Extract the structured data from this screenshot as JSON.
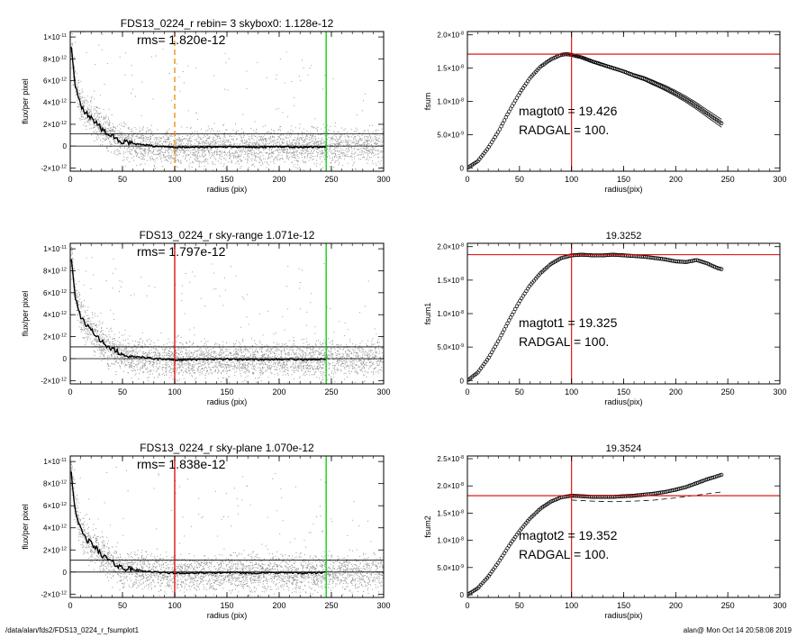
{
  "footer": {
    "path": "/data/alan/fds2/FDS13_0224_r_fsumplot1",
    "stamp": "alan@  Mon Oct 14 20:58:08 2019"
  },
  "colors": {
    "scatter_points": "#999999",
    "profile_line": "#000000",
    "magnitude_aperture": "#dd0000",
    "outer_radius": "#00cc00",
    "dashed_aperture": "#ee8800",
    "plateau_line": "#dd0000"
  },
  "chart_data": [
    {
      "type": "scatter",
      "panel": "left-1",
      "title": "FDS13_0224_r rebin= 3    skybox0:  1.128e-12",
      "annotation": "rms= 1.820e-12",
      "xlabel": "radius (pix)",
      "ylabel": "flux/per pixel",
      "xlim": [
        0,
        300
      ],
      "ylim": [
        -2.3e-12,
        1.05e-11
      ],
      "xticks": [
        0,
        50,
        100,
        150,
        200,
        250,
        300
      ],
      "xtick_labels": [
        "0",
        "50",
        "100",
        "150",
        "200",
        "250",
        "300"
      ],
      "yticks": [
        -2e-12,
        0,
        2e-12,
        4e-12,
        6e-12,
        8e-12,
        1e-11
      ],
      "ytick_labels": [
        [
          "-2×10",
          "-12"
        ],
        [
          "0",
          ""
        ],
        [
          "2×10",
          "-12"
        ],
        [
          "4×10",
          "-12"
        ],
        [
          "6×10",
          "-12"
        ],
        [
          "8×10",
          "-12"
        ],
        [
          "1×10",
          "-11"
        ]
      ],
      "hlines": [
        0,
        1.128e-12
      ],
      "vlines": [
        {
          "x": 100,
          "color": "#ee8800",
          "dashed": true
        },
        {
          "x": 245,
          "color": "#00cc00",
          "dashed": false
        }
      ],
      "profile": {
        "x": [
          1,
          3,
          5,
          8,
          10,
          15,
          20,
          25,
          30,
          35,
          40,
          45,
          50,
          60,
          70,
          80,
          90,
          100,
          120,
          150,
          180,
          200,
          220,
          245
        ],
        "y": [
          9.2e-12,
          7e-12,
          5.6e-12,
          4.5e-12,
          3.8e-12,
          3e-12,
          2.6e-12,
          2.1e-12,
          1.6e-12,
          1.2e-12,
          9e-13,
          6e-13,
          4e-13,
          2e-13,
          1e-13,
          0.0,
          -5e-14,
          -1e-13,
          -1e-13,
          -5e-14,
          -1e-13,
          -5e-14,
          -1e-13,
          -5e-14
        ]
      },
      "scatter_seed": 11
    },
    {
      "type": "scatter",
      "panel": "left-2",
      "title": "FDS13_0224_r sky-range  1.071e-12",
      "annotation": "rms= 1.797e-12",
      "xlabel": "radius (pix)",
      "ylabel": "flux/per pixel",
      "xlim": [
        0,
        300
      ],
      "ylim": [
        -2.3e-12,
        1.05e-11
      ],
      "xticks": [
        0,
        50,
        100,
        150,
        200,
        250,
        300
      ],
      "xtick_labels": [
        "0",
        "50",
        "100",
        "150",
        "200",
        "250",
        "300"
      ],
      "yticks": [
        -2e-12,
        0,
        2e-12,
        4e-12,
        6e-12,
        8e-12,
        1e-11
      ],
      "ytick_labels": [
        [
          "-2×10",
          "-12"
        ],
        [
          "0",
          ""
        ],
        [
          "2×10",
          "-12"
        ],
        [
          "4×10",
          "-12"
        ],
        [
          "6×10",
          "-12"
        ],
        [
          "8×10",
          "-12"
        ],
        [
          "1×10",
          "-11"
        ]
      ],
      "hlines": [
        0,
        1.071e-12
      ],
      "vlines": [
        {
          "x": 100,
          "color": "#dd0000",
          "dashed": false
        },
        {
          "x": 245,
          "color": "#00cc00",
          "dashed": false
        }
      ],
      "profile": {
        "x": [
          1,
          3,
          5,
          8,
          10,
          15,
          20,
          25,
          30,
          35,
          40,
          45,
          50,
          60,
          70,
          80,
          90,
          100,
          120,
          150,
          180,
          200,
          220,
          245
        ],
        "y": [
          9.2e-12,
          7e-12,
          5.6e-12,
          4.5e-12,
          3.8e-12,
          3e-12,
          2.6e-12,
          2.1e-12,
          1.6e-12,
          1.2e-12,
          9e-13,
          6e-13,
          4e-13,
          2e-13,
          1e-13,
          0.0,
          -5e-14,
          -1e-13,
          -1e-13,
          -5e-14,
          -1e-13,
          -5e-14,
          -1e-13,
          -5e-14
        ]
      },
      "scatter_seed": 23
    },
    {
      "type": "scatter",
      "panel": "left-3",
      "title": "FDS13_0224_r sky-plane  1.070e-12",
      "annotation": "rms= 1.838e-12",
      "xlabel": "radius (pix)",
      "ylabel": "flux/per pixel",
      "xlim": [
        0,
        300
      ],
      "ylim": [
        -2.3e-12,
        1.05e-11
      ],
      "xticks": [
        0,
        50,
        100,
        150,
        200,
        250,
        300
      ],
      "xtick_labels": [
        "0",
        "50",
        "100",
        "150",
        "200",
        "250",
        "300"
      ],
      "yticks": [
        -2e-12,
        0,
        2e-12,
        4e-12,
        6e-12,
        8e-12,
        1e-11
      ],
      "ytick_labels": [
        [
          "-2×10",
          "-12"
        ],
        [
          "0",
          ""
        ],
        [
          "2×10",
          "-12"
        ],
        [
          "4×10",
          "-12"
        ],
        [
          "6×10",
          "-12"
        ],
        [
          "8×10",
          "-12"
        ],
        [
          "1×10",
          "-11"
        ]
      ],
      "hlines": [
        0,
        1.07e-12
      ],
      "vlines": [
        {
          "x": 100,
          "color": "#dd0000",
          "dashed": false
        },
        {
          "x": 245,
          "color": "#00cc00",
          "dashed": false
        }
      ],
      "profile": {
        "x": [
          1,
          3,
          5,
          8,
          10,
          15,
          20,
          25,
          30,
          35,
          40,
          45,
          50,
          60,
          70,
          80,
          90,
          100,
          120,
          150,
          180,
          200,
          220,
          245
        ],
        "y": [
          9.2e-12,
          7e-12,
          5.6e-12,
          4.5e-12,
          3.8e-12,
          3e-12,
          2.6e-12,
          2.1e-12,
          1.6e-12,
          1.2e-12,
          9e-13,
          6e-13,
          4e-13,
          2e-13,
          1e-13,
          0.0,
          -5e-14,
          -1e-13,
          -1e-13,
          -5e-14,
          -1e-13,
          -5e-14,
          -1e-13,
          -5e-14
        ]
      },
      "scatter_seed": 37
    },
    {
      "type": "scatter",
      "panel": "right-1",
      "title": "",
      "xlabel": "radius(pix)",
      "ylabel": "fsum",
      "xlim": [
        0,
        300
      ],
      "ylim": [
        -5e-10,
        2.05e-08
      ],
      "xticks": [
        0,
        50,
        100,
        150,
        200,
        250,
        300
      ],
      "xtick_labels": [
        "0",
        "50",
        "100",
        "150",
        "200",
        "250",
        "300"
      ],
      "yticks": [
        0,
        5e-09,
        1e-08,
        1.5e-08,
        2e-08
      ],
      "ytick_labels": [
        [
          "0",
          ""
        ],
        [
          "5.0×10",
          "-9"
        ],
        [
          "1.0×10",
          "-8"
        ],
        [
          "1.5×10",
          "-8"
        ],
        [
          "2.0×10",
          "-8"
        ]
      ],
      "hline": 1.71e-08,
      "vline": 100,
      "labels": [
        "magtot0 =  19.426",
        "RADGAL =    100."
      ],
      "curve": {
        "x": [
          0,
          10,
          20,
          30,
          40,
          50,
          60,
          70,
          80,
          90,
          95,
          100,
          110,
          120,
          130,
          140,
          150,
          160,
          170,
          180,
          190,
          200,
          210,
          220,
          230,
          245
        ],
        "y": [
          0,
          1e-09,
          3e-09,
          5.5e-09,
          8.5e-09,
          1.12e-08,
          1.35e-08,
          1.52e-08,
          1.63e-08,
          1.7e-08,
          1.71e-08,
          1.7e-08,
          1.66e-08,
          1.6e-08,
          1.55e-08,
          1.5e-08,
          1.45e-08,
          1.39e-08,
          1.34e-08,
          1.27e-08,
          1.2e-08,
          1.12e-08,
          1.03e-08,
          9.3e-09,
          8.2e-09,
          6.6e-09
        ]
      },
      "envelope": 6e-10
    },
    {
      "type": "scatter",
      "panel": "right-2",
      "title": "19.3252",
      "xlabel": "radius(pix)",
      "ylabel": "fsum1",
      "xlim": [
        0,
        300
      ],
      "ylim": [
        -5e-10,
        2.05e-08
      ],
      "xticks": [
        0,
        50,
        100,
        150,
        200,
        250,
        300
      ],
      "xtick_labels": [
        "0",
        "50",
        "100",
        "150",
        "200",
        "250",
        "300"
      ],
      "yticks": [
        0,
        5e-09,
        1e-08,
        1.5e-08,
        2e-08
      ],
      "ytick_labels": [
        [
          "0",
          ""
        ],
        [
          "5.0×10",
          "-9"
        ],
        [
          "1.0×10",
          "-8"
        ],
        [
          "1.5×10",
          "-8"
        ],
        [
          "2.0×10",
          "-8"
        ]
      ],
      "hline": 1.88e-08,
      "vline": 100,
      "labels": [
        "magtot1 =  19.325",
        "RADGAL =    100."
      ],
      "curve": {
        "x": [
          0,
          10,
          20,
          30,
          40,
          50,
          60,
          70,
          80,
          90,
          100,
          110,
          120,
          130,
          140,
          150,
          160,
          170,
          180,
          190,
          200,
          210,
          220,
          230,
          240,
          245
        ],
        "y": [
          0,
          1.2e-09,
          3.3e-09,
          6e-09,
          9e-09,
          1.18e-08,
          1.42e-08,
          1.6e-08,
          1.74e-08,
          1.83e-08,
          1.87e-08,
          1.88e-08,
          1.87e-08,
          1.87e-08,
          1.88e-08,
          1.87e-08,
          1.86e-08,
          1.85e-08,
          1.83e-08,
          1.81e-08,
          1.78e-08,
          1.77e-08,
          1.8e-08,
          1.75e-08,
          1.68e-08,
          1.66e-08
        ]
      },
      "envelope": 0
    },
    {
      "type": "scatter",
      "panel": "right-3",
      "title": "19.3524",
      "xlabel": "radius(pix)",
      "ylabel": "fsum2",
      "xlim": [
        0,
        300
      ],
      "ylim": [
        -5e-10,
        2.55e-08
      ],
      "xticks": [
        0,
        50,
        100,
        150,
        200,
        250,
        300
      ],
      "xtick_labels": [
        "0",
        "50",
        "100",
        "150",
        "200",
        "250",
        "300"
      ],
      "yticks": [
        0,
        5e-09,
        1e-08,
        1.5e-08,
        2e-08,
        2.5e-08
      ],
      "ytick_labels": [
        [
          "0",
          ""
        ],
        [
          "5.0×10",
          "-9"
        ],
        [
          "1.0×10",
          "-8"
        ],
        [
          "1.5×10",
          "-8"
        ],
        [
          "2.0×10",
          "-8"
        ],
        [
          "2.5×10",
          "-8"
        ]
      ],
      "hline": 1.82e-08,
      "vline": 100,
      "labels": [
        "magtot2 =  19.352",
        "RADGAL =    100."
      ],
      "curve": {
        "x": [
          0,
          10,
          20,
          30,
          40,
          50,
          60,
          70,
          80,
          90,
          100,
          110,
          120,
          130,
          140,
          150,
          160,
          170,
          180,
          190,
          200,
          210,
          220,
          230,
          240,
          245
        ],
        "y": [
          0,
          1.2e-09,
          3.3e-09,
          6e-09,
          9e-09,
          1.17e-08,
          1.4e-08,
          1.58e-08,
          1.71e-08,
          1.79e-08,
          1.82e-08,
          1.81e-08,
          1.8e-08,
          1.8e-08,
          1.8e-08,
          1.81e-08,
          1.82e-08,
          1.84e-08,
          1.86e-08,
          1.89e-08,
          1.93e-08,
          1.98e-08,
          2.05e-08,
          2.12e-08,
          2.18e-08,
          2.21e-08
        ]
      },
      "dashed_curve": {
        "x": [
          100,
          120,
          140,
          160,
          180,
          200,
          220,
          245
        ],
        "y": [
          1.74e-08,
          1.72e-08,
          1.71e-08,
          1.72e-08,
          1.74e-08,
          1.78e-08,
          1.83e-08,
          1.89e-08
        ]
      },
      "envelope": 0
    }
  ]
}
